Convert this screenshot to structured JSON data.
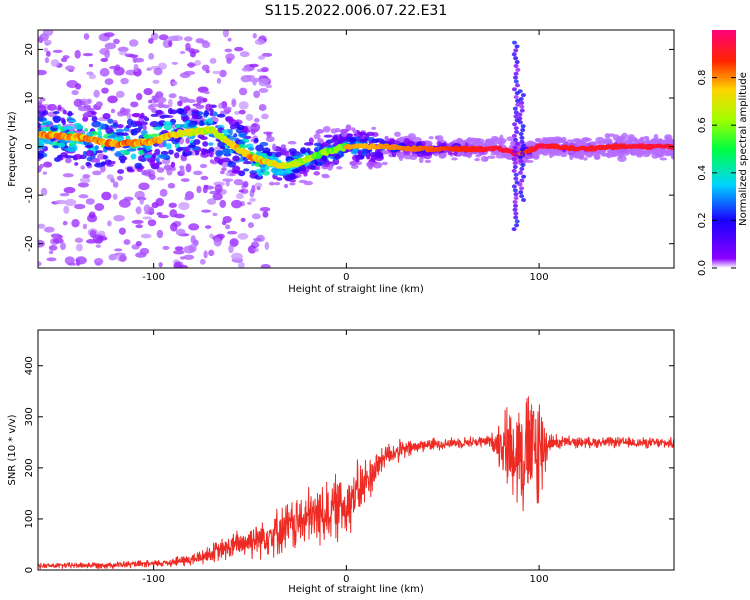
{
  "figure": {
    "title": "S115.2022.006.07.22.E31"
  },
  "colors": {
    "snr_line": "#ee2a24",
    "axis": "#000000",
    "background": "#ffffff"
  },
  "chart_data": [
    {
      "type": "heatmap",
      "xlabel": "Height of straight line (km)",
      "ylabel": "Frequency (Hz)",
      "xlim": [
        -160,
        170
      ],
      "ylim": [
        -25,
        24
      ],
      "x_ticks": [
        -100,
        0,
        100
      ],
      "x_tick_labels": [
        "-100",
        "0",
        "100"
      ],
      "y_ticks": [
        -20,
        -10,
        0,
        10,
        20
      ],
      "y_tick_labels": [
        "-20",
        "-10",
        "0",
        "10",
        "20"
      ],
      "colormap": "gist_rainbow_r",
      "colorbar": {
        "label": "Normalized spectral amplitude",
        "range": [
          0.0,
          1.0
        ],
        "ticks": [
          0.0,
          0.2,
          0.4,
          0.6,
          0.8
        ],
        "tick_labels": [
          "0.0",
          "0.2",
          "0.4",
          "0.6",
          "0.8"
        ]
      },
      "ridge": {
        "description_values": "approximate center frequency (Hz) and peak amplitude vs height (km)",
        "height_km": [
          -160,
          -140,
          -120,
          -100,
          -90,
          -80,
          -70,
          -60,
          -50,
          -40,
          -30,
          -20,
          -10,
          0,
          10,
          20,
          40,
          60,
          70,
          80,
          85,
          88,
          90,
          100,
          110,
          120,
          140,
          160,
          170
        ],
        "freq_hz": [
          2.5,
          2.0,
          0.5,
          1.0,
          2.5,
          3.0,
          3.5,
          0.5,
          -2.0,
          -3.5,
          -4.0,
          -2.5,
          -1.0,
          0.0,
          0.0,
          0.0,
          -0.5,
          -0.5,
          -0.5,
          -0.5,
          -1.0,
          -1.5,
          -1.5,
          0.0,
          0.0,
          -0.5,
          0.0,
          0.0,
          0.0
        ],
        "amplitude": [
          0.65,
          0.65,
          0.68,
          0.66,
          0.6,
          0.55,
          0.55,
          0.58,
          0.65,
          0.6,
          0.55,
          0.5,
          0.45,
          0.4,
          0.45,
          0.38,
          0.3,
          0.2,
          0.1,
          0.05,
          0.03,
          0.02,
          0.35,
          0.0,
          0.15,
          0.1,
          0.1,
          0.05,
          0.05
        ]
      }
    },
    {
      "type": "line",
      "xlabel": "Height of straight line (km)",
      "ylabel": "SNR (10 * v/v)",
      "xlim": [
        -160,
        170
      ],
      "ylim": [
        0,
        470
      ],
      "x_ticks": [
        -100,
        0,
        100
      ],
      "x_tick_labels": [
        "-100",
        "0",
        "100"
      ],
      "y_ticks": [
        0,
        100,
        200,
        300,
        400
      ],
      "y_tick_labels": [
        "0",
        "100",
        "200",
        "300",
        "400"
      ],
      "series": [
        {
          "values_description": "SNR vs height; envelope points (height km, mean SNR, noise amplitude)",
          "x": [
            -160,
            -120,
            -100,
            -80,
            -60,
            -40,
            -20,
            0,
            10,
            20,
            40,
            60,
            75,
            80,
            85,
            90,
            95,
            100,
            105,
            120,
            140,
            170
          ],
          "mean": [
            8,
            10,
            12,
            20,
            45,
            70,
            100,
            130,
            170,
            225,
            245,
            250,
            252,
            250,
            240,
            235,
            230,
            230,
            250,
            250,
            250,
            248
          ],
          "noise": [
            6,
            8,
            8,
            15,
            30,
            50,
            70,
            80,
            60,
            30,
            15,
            12,
            15,
            60,
            110,
            140,
            150,
            160,
            20,
            12,
            12,
            12
          ]
        }
      ]
    }
  ]
}
